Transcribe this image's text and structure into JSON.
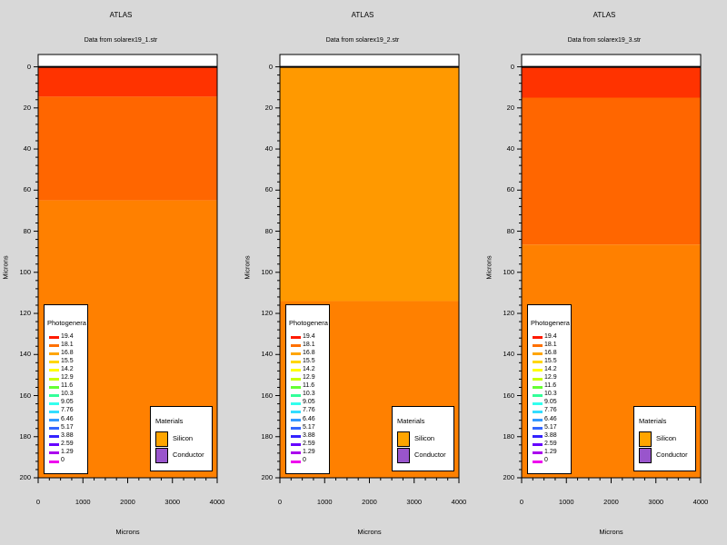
{
  "chart_data": [
    {
      "type": "heatmap",
      "title": "ATLAS",
      "subtitle": "Data from solarex19_1.str",
      "xlabel": "Microns",
      "ylabel": "Microns",
      "xlim": [
        0,
        4000
      ],
      "ylim": [
        -6,
        200
      ],
      "xticks": [
        "0",
        "1000",
        "2000",
        "3000",
        "4000"
      ],
      "yticks": [
        "0",
        "20",
        "40",
        "60",
        "80",
        "100",
        "120",
        "140",
        "160",
        "180",
        "200"
      ],
      "regions": [
        {
          "y0": 0,
          "y1": 14.5,
          "color": "#ff3300"
        },
        {
          "y0": 14.5,
          "y1": 65,
          "color": "#ff6600"
        },
        {
          "y0": 65,
          "y1": 200,
          "color": "#ff8000"
        }
      ],
      "colorbar": {
        "title": "Photogenerat",
        "values": [
          "19.4",
          "18.1",
          "16.8",
          "15.5",
          "14.2",
          "12.9",
          "11.6",
          "10.3",
          "9.05",
          "7.76",
          "6.46",
          "5.17",
          "3.88",
          "2.59",
          "1.29",
          "0"
        ],
        "colors": [
          "#ff1a00",
          "#ff7000",
          "#ffa500",
          "#ffd700",
          "#ffff00",
          "#c8ff00",
          "#66ff33",
          "#33ff99",
          "#33ffee",
          "#33ddff",
          "#3399ff",
          "#3366ff",
          "#3322ff",
          "#6600ff",
          "#aa00ee",
          "#ee00ee"
        ]
      },
      "materials": {
        "title": "Materials",
        "items": [
          {
            "name": "Silicon",
            "color": "#ffa500"
          },
          {
            "name": "Conductor",
            "color": "#9955cc"
          }
        ]
      }
    },
    {
      "type": "heatmap",
      "title": "ATLAS",
      "subtitle": "Data from solarex19_2.str",
      "xlabel": "Microns",
      "ylabel": "Microns",
      "xlim": [
        0,
        4000
      ],
      "ylim": [
        -6,
        200
      ],
      "xticks": [
        "0",
        "1000",
        "2000",
        "3000",
        "4000"
      ],
      "yticks": [
        "0",
        "20",
        "40",
        "60",
        "80",
        "100",
        "120",
        "140",
        "160",
        "180",
        "200"
      ],
      "regions": [
        {
          "y0": 0,
          "y1": 114,
          "color": "#ff9900"
        },
        {
          "y0": 114,
          "y1": 200,
          "color": "#ff8000"
        }
      ],
      "colorbar": {
        "title": "Photogenerat",
        "values": [
          "19.4",
          "18.1",
          "16.8",
          "15.5",
          "14.2",
          "12.9",
          "11.6",
          "10.3",
          "9.05",
          "7.76",
          "6.46",
          "5.17",
          "3.88",
          "2.59",
          "1.29",
          "0"
        ],
        "colors": [
          "#ff1a00",
          "#ff7000",
          "#ffa500",
          "#ffd700",
          "#ffff00",
          "#c8ff00",
          "#66ff33",
          "#33ff99",
          "#33ffee",
          "#33ddff",
          "#3399ff",
          "#3366ff",
          "#3322ff",
          "#6600ff",
          "#aa00ee",
          "#ee00ee"
        ]
      },
      "materials": {
        "title": "Materials",
        "items": [
          {
            "name": "Silicon",
            "color": "#ffa500"
          },
          {
            "name": "Conductor",
            "color": "#9955cc"
          }
        ]
      }
    },
    {
      "type": "heatmap",
      "title": "ATLAS",
      "subtitle": "Data from solarex19_3.str",
      "xlabel": "Microns",
      "ylabel": "Microns",
      "xlim": [
        0,
        4000
      ],
      "ylim": [
        -6,
        200
      ],
      "xticks": [
        "0",
        "1000",
        "2000",
        "3000",
        "4000"
      ],
      "yticks": [
        "0",
        "20",
        "40",
        "60",
        "80",
        "100",
        "120",
        "140",
        "160",
        "180",
        "200"
      ],
      "regions": [
        {
          "y0": 0,
          "y1": 15,
          "color": "#ff3300"
        },
        {
          "y0": 15,
          "y1": 86.5,
          "color": "#ff6600"
        },
        {
          "y0": 86.5,
          "y1": 200,
          "color": "#ff8000"
        }
      ],
      "colorbar": {
        "title": "Photogenerat",
        "values": [
          "19.4",
          "18.1",
          "16.8",
          "15.5",
          "14.2",
          "12.9",
          "11.6",
          "10.3",
          "9.05",
          "7.76",
          "6.46",
          "5.17",
          "3.88",
          "2.59",
          "1.29",
          "0"
        ],
        "colors": [
          "#ff1a00",
          "#ff7000",
          "#ffa500",
          "#ffd700",
          "#ffff00",
          "#c8ff00",
          "#66ff33",
          "#33ff99",
          "#33ffee",
          "#33ddff",
          "#3399ff",
          "#3366ff",
          "#3322ff",
          "#6600ff",
          "#aa00ee",
          "#ee00ee"
        ]
      },
      "materials": {
        "title": "Materials",
        "items": [
          {
            "name": "Silicon",
            "color": "#ffa500"
          },
          {
            "name": "Conductor",
            "color": "#9955cc"
          }
        ]
      }
    }
  ]
}
